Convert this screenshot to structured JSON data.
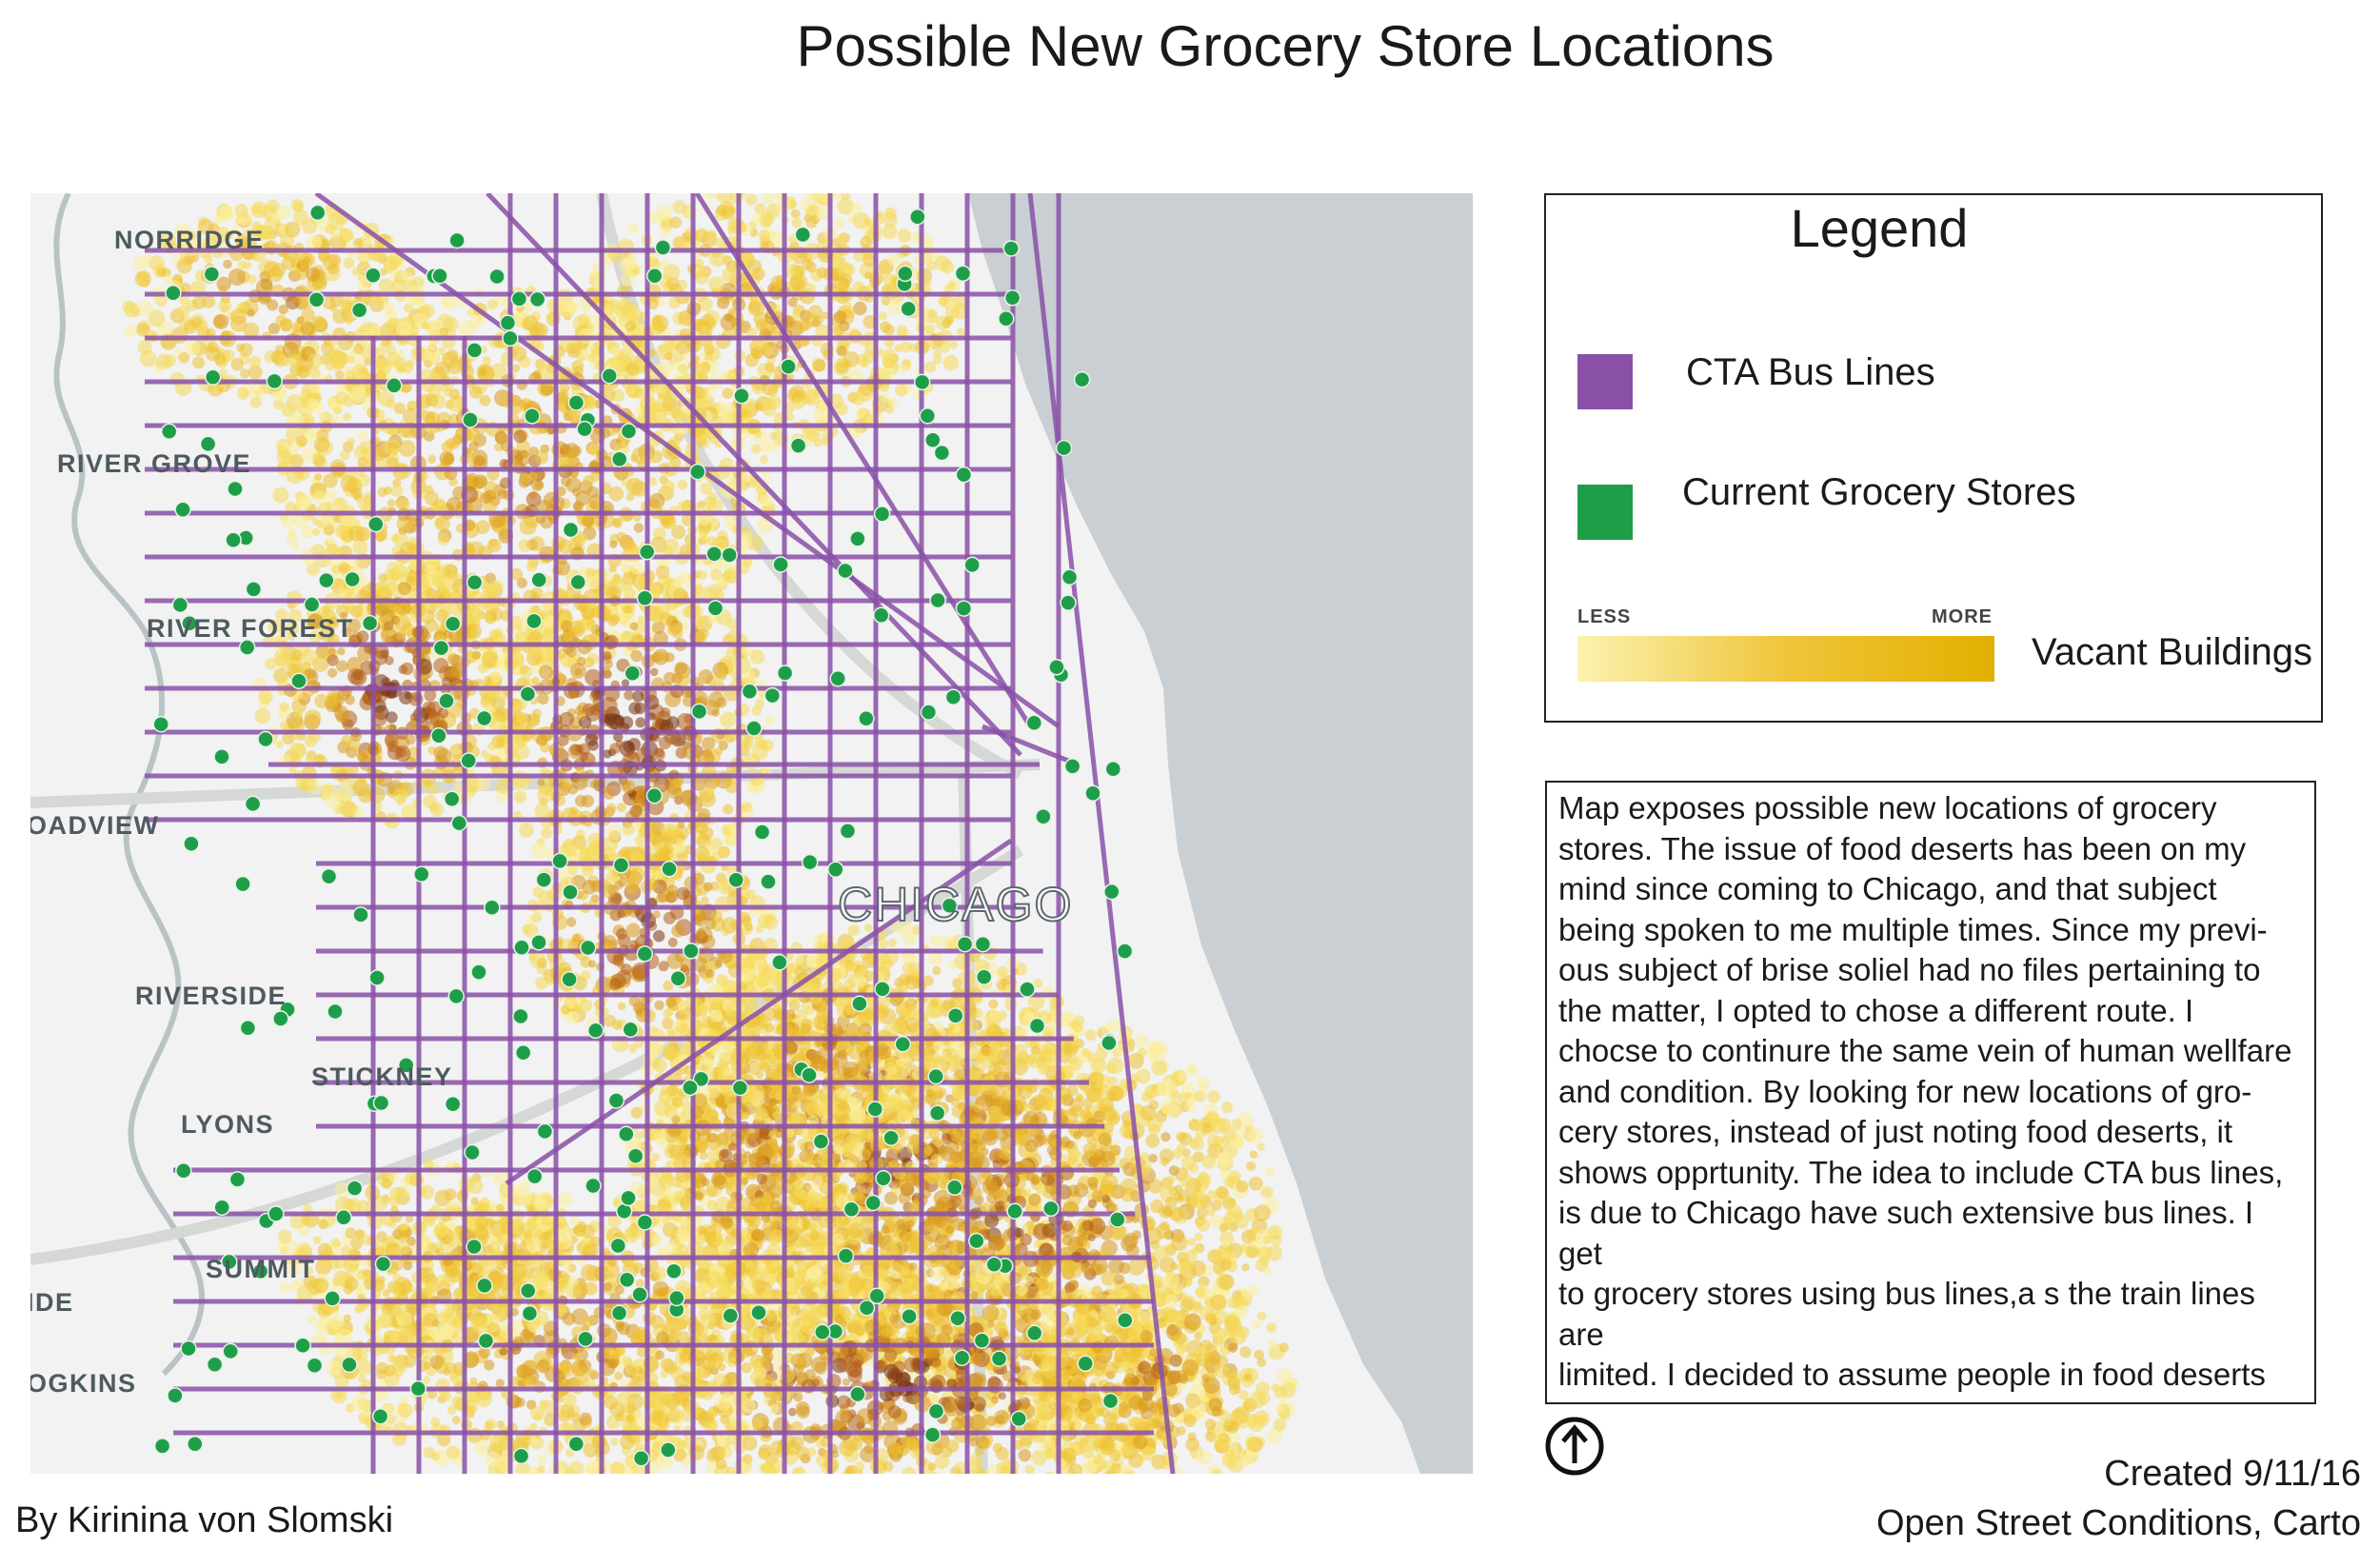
{
  "title": "Possible New Grocery Store Locations",
  "map": {
    "place_labels": [
      "NORRIDGE",
      "RIVER GROVE",
      "RIVER FOREST",
      "OADVIEW",
      "RIVERSIDE",
      "STICKNEY",
      "LYONS",
      "SUMMIT",
      "IDE",
      "OGKINS"
    ],
    "city_label": "CHICAGO",
    "colors": {
      "bus_lines": "#8a50a8",
      "grocery_stores": "#1f9e4a",
      "vacant_less": "#fbf2b0",
      "vacant_more": "#e2b000",
      "lake": "#c9cfd2",
      "land": "#f1f2f1"
    }
  },
  "legend": {
    "title": "Legend",
    "items": [
      {
        "label": "CTA Bus Lines",
        "color": "#8a50a8"
      },
      {
        "label": "Current Grocery Stores",
        "color": "#1f9e4a"
      }
    ],
    "scale": {
      "less": "LESS",
      "more": "MORE",
      "label": "Vacant Buildings"
    }
  },
  "description": "Map exposes possible new locations of grocery\nstores. The issue of food deserts has been on my\nmind since coming to Chicago, and that subject\nbeing spoken to me multiple times. Since my previ-\nous subject of brise soliel had no files pertaining to\nthe matter, I opted to chose a different route. I\nchocse to continure the same vein of human wellfare\nand condition. By looking for new locations of gro-\ncery stores, instead of just noting food deserts, it\nshows opprtunity. The idea to include CTA bus lines,\nis due to Chicago have such extensive bus lines. I get\nto grocery stores using bus lines,a s the train lines are\nlimited. I decided to assume people in food deserts\nwould too.  In the map, the grocery stores are mainly\ndepicted on major bus lines.",
  "north_arrow_icon": "north-arrow-icon",
  "credits": {
    "author": "By Kirinina von Slomski",
    "created": "Created 9/11/16",
    "source": "Open Street Conditions, Carto"
  }
}
